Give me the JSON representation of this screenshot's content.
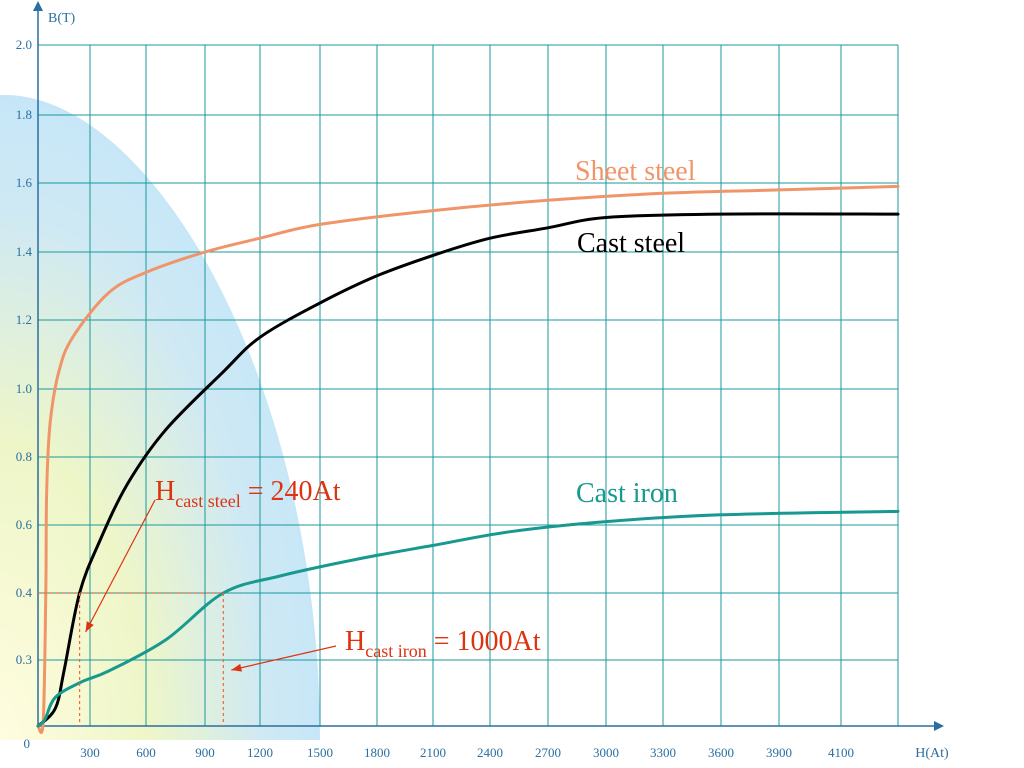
{
  "chart_data": {
    "type": "line",
    "xlabel": "H(At)",
    "ylabel": "B(T)",
    "x_ticks": [
      "300",
      "600",
      "900",
      "1200",
      "1500",
      "1800",
      "2100",
      "2400",
      "2700",
      "3000",
      "3300",
      "3600",
      "3900",
      "4100"
    ],
    "y_ticks": [
      "0",
      "0.3",
      "0.4",
      "0.6",
      "0.8",
      "1.0",
      "1.2",
      "1.4",
      "1.6",
      "1.8",
      "2.0"
    ],
    "grid": true,
    "series": [
      {
        "name": "Sheet steel",
        "color": "#f0956a",
        "points": [
          [
            0,
            0
          ],
          [
            30,
            0.02
          ],
          [
            45,
            0.4
          ],
          [
            50,
            0.7
          ],
          [
            70,
            0.9
          ],
          [
            120,
            1.05
          ],
          [
            200,
            1.15
          ],
          [
            400,
            1.28
          ],
          [
            600,
            1.34
          ],
          [
            900,
            1.4
          ],
          [
            1200,
            1.44
          ],
          [
            1500,
            1.48
          ],
          [
            2100,
            1.52
          ],
          [
            2700,
            1.55
          ],
          [
            3300,
            1.57
          ],
          [
            3900,
            1.58
          ],
          [
            4500,
            1.59
          ]
        ]
      },
      {
        "name": "Cast steel",
        "color": "#000000",
        "points": [
          [
            0,
            0
          ],
          [
            100,
            0.08
          ],
          [
            150,
            0.25
          ],
          [
            240,
            0.4
          ],
          [
            350,
            0.55
          ],
          [
            500,
            0.72
          ],
          [
            700,
            0.88
          ],
          [
            1000,
            1.05
          ],
          [
            1200,
            1.15
          ],
          [
            1500,
            1.25
          ],
          [
            1800,
            1.33
          ],
          [
            2100,
            1.39
          ],
          [
            2400,
            1.44
          ],
          [
            2700,
            1.47
          ],
          [
            3000,
            1.5
          ],
          [
            3600,
            1.51
          ],
          [
            4500,
            1.51
          ]
        ]
      },
      {
        "name": "Cast iron",
        "color": "#17998f",
        "points": [
          [
            0,
            0
          ],
          [
            40,
            0.03
          ],
          [
            100,
            0.13
          ],
          [
            250,
            0.2
          ],
          [
            400,
            0.25
          ],
          [
            700,
            0.33
          ],
          [
            1000,
            0.4
          ],
          [
            1300,
            0.45
          ],
          [
            1700,
            0.5
          ],
          [
            2100,
            0.54
          ],
          [
            2500,
            0.58
          ],
          [
            3000,
            0.61
          ],
          [
            3600,
            0.63
          ],
          [
            4500,
            0.64
          ]
        ]
      }
    ],
    "series_labels": [
      "Sheet steel",
      "Cast steel",
      "Cast iron"
    ],
    "annotations": [
      {
        "main": "H",
        "sub": "cast steel",
        "tail": " = 240At",
        "x": 240,
        "y": 0.4,
        "color": "#dd3311"
      },
      {
        "main": "H",
        "sub": "cast iron",
        "tail": " = 1000At",
        "x": 1000,
        "y": 0.4,
        "color": "#dd3311"
      }
    ]
  }
}
